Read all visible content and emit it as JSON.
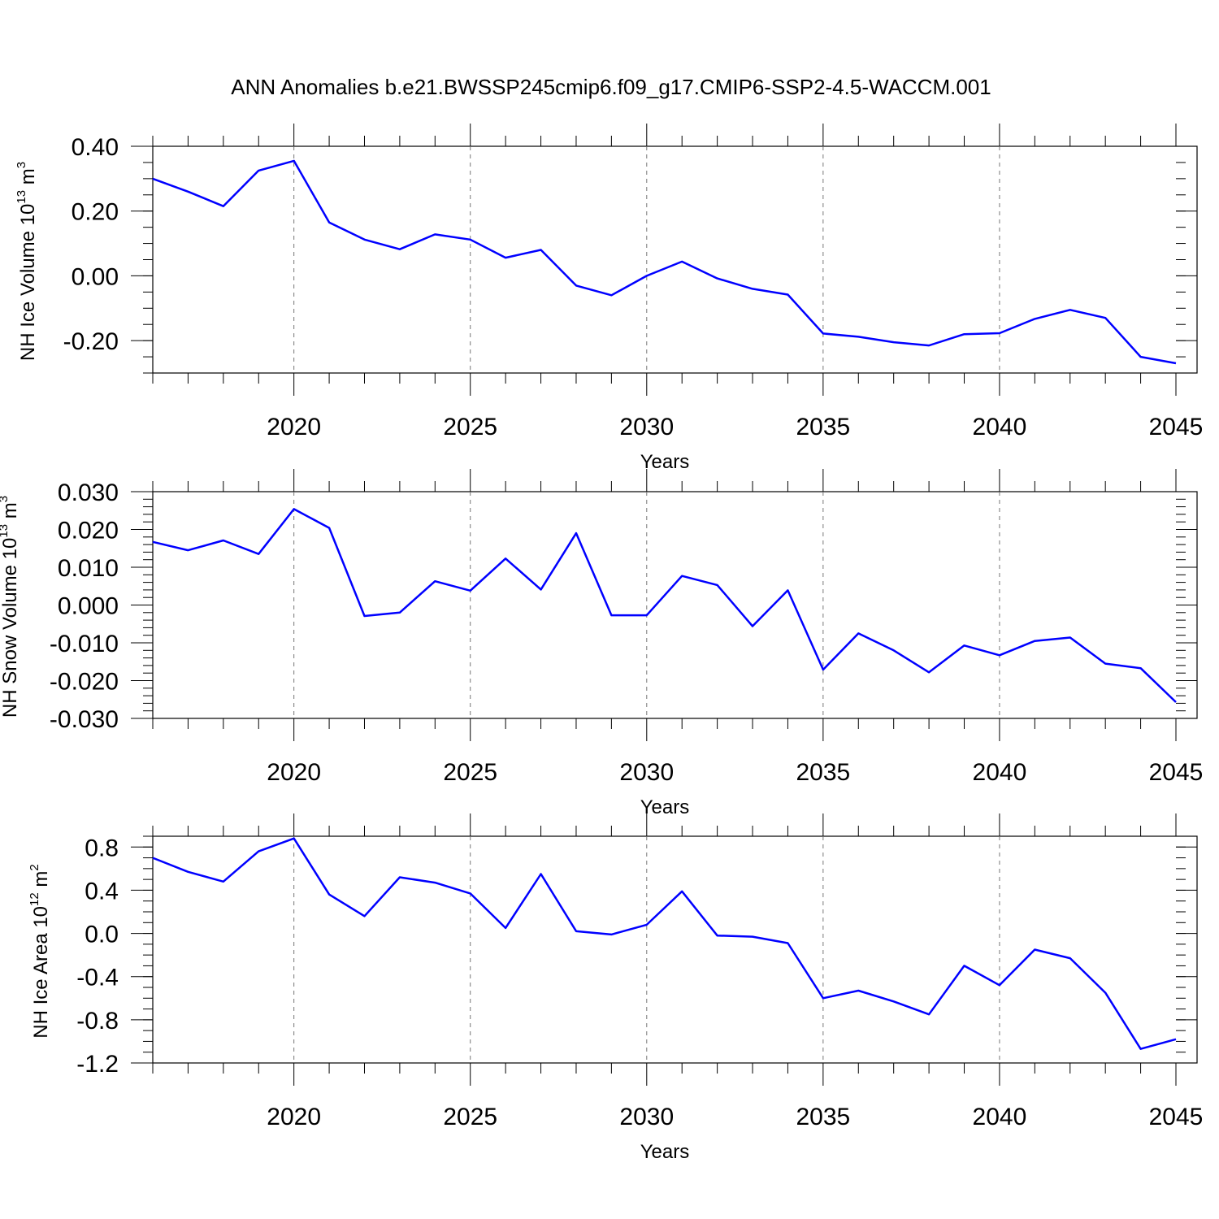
{
  "title": "ANN Anomalies b.e21.BWSSP245cmip6.f09_g17.CMIP6-SSP2-4.5-WACCM.001",
  "line_color": "#0000ff",
  "grid_color": "#777777",
  "chart_data": [
    {
      "type": "line",
      "ylabel": "NH Ice Volume 10",
      "ylabel_exp": "13",
      "ylabel_unit": " m",
      "ylabel_unit_exp": "3",
      "xlabel": "Years",
      "xlim": [
        2016,
        2045
      ],
      "ylim": [
        -0.3,
        0.4
      ],
      "yticks": [
        0.4,
        0.2,
        0.0,
        -0.2
      ],
      "ytick_labels": [
        "0.40",
        "0.20",
        "0.00",
        "-0.20"
      ],
      "yminor": 0.05,
      "xticks": [
        2020,
        2025,
        2030,
        2035,
        2040,
        2045
      ],
      "xtick_labels": [
        "2020",
        "2025",
        "2030",
        "2035",
        "2040",
        "2045"
      ],
      "grid": "vertical dashed",
      "x": [
        2016,
        2017,
        2018,
        2019,
        2020,
        2021,
        2022,
        2023,
        2024,
        2025,
        2026,
        2027,
        2028,
        2029,
        2030,
        2031,
        2032,
        2033,
        2034,
        2035,
        2036,
        2037,
        2038,
        2039,
        2040,
        2041,
        2042,
        2043,
        2044,
        2045
      ],
      "series": [
        {
          "values": [
            0.3,
            0.26,
            0.215,
            0.325,
            0.355,
            0.165,
            0.112,
            0.082,
            0.128,
            0.112,
            0.056,
            0.08,
            -0.03,
            -0.06,
            0.0,
            0.044,
            -0.008,
            -0.04,
            -0.058,
            -0.178,
            -0.188,
            -0.205,
            -0.215,
            -0.18,
            -0.177,
            -0.133,
            -0.105,
            -0.13,
            -0.25,
            -0.27
          ]
        }
      ]
    },
    {
      "type": "line",
      "ylabel": "NH Snow Volume 10",
      "ylabel_exp": "13",
      "ylabel_unit": " m",
      "ylabel_unit_exp": "3",
      "xlabel": "Years",
      "xlim": [
        2016,
        2045
      ],
      "ylim": [
        -0.03,
        0.03
      ],
      "yticks": [
        0.03,
        0.02,
        0.01,
        0.0,
        -0.01,
        -0.02,
        -0.03
      ],
      "ytick_labels": [
        "0.030",
        "0.020",
        "0.010",
        "0.000",
        "-0.010",
        "-0.020",
        "-0.030"
      ],
      "yminor": 0.002,
      "xticks": [
        2020,
        2025,
        2030,
        2035,
        2040,
        2045
      ],
      "xtick_labels": [
        "2020",
        "2025",
        "2030",
        "2035",
        "2040",
        "2045"
      ],
      "grid": "vertical dashed",
      "x": [
        2016,
        2017,
        2018,
        2019,
        2020,
        2021,
        2022,
        2023,
        2024,
        2025,
        2026,
        2027,
        2028,
        2029,
        2030,
        2031,
        2032,
        2033,
        2034,
        2035,
        2036,
        2037,
        2038,
        2039,
        2040,
        2041,
        2042,
        2043,
        2044,
        2045
      ],
      "series": [
        {
          "values": [
            0.0167,
            0.0145,
            0.0171,
            0.0135,
            0.0254,
            0.0204,
            -0.0029,
            -0.002,
            0.0063,
            0.0038,
            0.0123,
            0.0041,
            0.019,
            -0.0027,
            -0.0027,
            0.0077,
            0.0053,
            -0.0056,
            0.0039,
            -0.0171,
            -0.0075,
            -0.012,
            -0.0178,
            -0.0107,
            -0.0133,
            -0.0095,
            -0.0086,
            -0.0155,
            -0.0167,
            -0.0257
          ]
        }
      ]
    },
    {
      "type": "line",
      "ylabel": "NH Ice Area 10",
      "ylabel_exp": "12",
      "ylabel_unit": " m",
      "ylabel_unit_exp": "2",
      "xlabel": "Years",
      "xlim": [
        2016,
        2045
      ],
      "ylim": [
        -1.2,
        0.9
      ],
      "yticks": [
        0.8,
        0.4,
        0.0,
        -0.4,
        -0.8,
        -1.2
      ],
      "ytick_labels": [
        "0.8",
        "0.4",
        "0.0",
        "-0.4",
        "-0.8",
        "-1.2"
      ],
      "yminor": 0.1,
      "xticks": [
        2020,
        2025,
        2030,
        2035,
        2040,
        2045
      ],
      "xtick_labels": [
        "2020",
        "2025",
        "2030",
        "2035",
        "2040",
        "2045"
      ],
      "grid": "vertical dashed",
      "x": [
        2016,
        2017,
        2018,
        2019,
        2020,
        2021,
        2022,
        2023,
        2024,
        2025,
        2026,
        2027,
        2028,
        2029,
        2030,
        2031,
        2032,
        2033,
        2034,
        2035,
        2036,
        2037,
        2038,
        2039,
        2040,
        2041,
        2042,
        2043,
        2044,
        2045
      ],
      "series": [
        {
          "values": [
            0.7,
            0.57,
            0.48,
            0.76,
            0.88,
            0.36,
            0.16,
            0.52,
            0.47,
            0.37,
            0.05,
            0.55,
            0.02,
            -0.01,
            0.08,
            0.39,
            -0.02,
            -0.03,
            -0.09,
            -0.6,
            -0.53,
            -0.63,
            -0.75,
            -0.3,
            -0.48,
            -0.15,
            -0.23,
            -0.55,
            -1.07,
            -0.98
          ]
        }
      ]
    }
  ]
}
